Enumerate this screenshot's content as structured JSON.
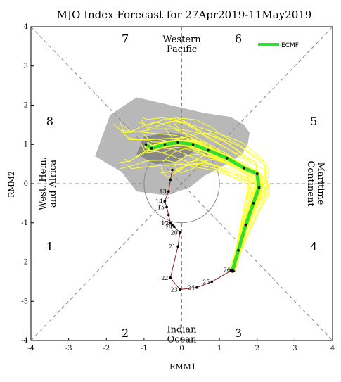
{
  "chart_data": {
    "type": "line",
    "title": "MJO Index Forecast for 27Apr2019-11May2019",
    "xlabel": "RMM1",
    "ylabel": "RMM2",
    "xlim": [
      -4,
      4
    ],
    "ylim": [
      -4,
      4
    ],
    "xticks": [
      "-4",
      "-3",
      "-2",
      "-1",
      "0",
      "1",
      "2",
      "3",
      "4"
    ],
    "yticks": [
      "-4",
      "-3",
      "-2",
      "-1",
      "0",
      "1",
      "2",
      "3",
      "4"
    ],
    "grid": false,
    "legend": {
      "position": "top-right",
      "entries": [
        "ECMF"
      ]
    },
    "phases": [
      {
        "label": "1",
        "x": -3.5,
        "y": -1.6
      },
      {
        "label": "2",
        "x": -1.5,
        "y": -3.8
      },
      {
        "label": "3",
        "x": 1.5,
        "y": -3.8
      },
      {
        "label": "4",
        "x": 3.5,
        "y": -1.6
      },
      {
        "label": "5",
        "x": 3.5,
        "y": 1.6
      },
      {
        "label": "6",
        "x": 1.5,
        "y": 3.7
      },
      {
        "label": "7",
        "x": -1.5,
        "y": 3.7
      },
      {
        "label": "8",
        "x": -3.5,
        "y": 1.6
      }
    ],
    "regions": [
      {
        "lines": [
          "Western",
          "Pacific"
        ],
        "x": 0,
        "y": 3.55,
        "rotate": 0
      },
      {
        "lines": [
          "Indian",
          "Ocean"
        ],
        "x": 0,
        "y": -3.85,
        "rotate": 0
      },
      {
        "lines": [
          "West. Hem.",
          "and Africa"
        ],
        "x": -3.55,
        "y": 0,
        "rotate": -90
      },
      {
        "lines": [
          "Maritime",
          "Continent"
        ],
        "x": 3.55,
        "y": 0,
        "rotate": 90
      }
    ],
    "series": [
      {
        "name": "",
        "kind": "observed",
        "color": "#8b1a1a",
        "points": [
          {
            "x": -0.25,
            "y": 0.35,
            "label": ""
          },
          {
            "x": -0.3,
            "y": 0.1,
            "label": ""
          },
          {
            "x": -0.35,
            "y": -0.2,
            "label": "13"
          },
          {
            "x": -0.45,
            "y": -0.45,
            "label": "14"
          },
          {
            "x": -0.4,
            "y": -0.6,
            "label": "15"
          },
          {
            "x": -0.35,
            "y": -0.8,
            "label": ""
          },
          {
            "x": -0.3,
            "y": -1.0,
            "label": "17"
          },
          {
            "x": -0.25,
            "y": -1.05,
            "label": "18"
          },
          {
            "x": -0.2,
            "y": -1.1,
            "label": "19"
          },
          {
            "x": -0.05,
            "y": -1.25,
            "label": "20"
          },
          {
            "x": -0.1,
            "y": -1.6,
            "label": "21"
          },
          {
            "x": -0.3,
            "y": -2.4,
            "label": "22"
          },
          {
            "x": -0.05,
            "y": -2.7,
            "label": "23"
          },
          {
            "x": 0.4,
            "y": -2.65,
            "label": "24"
          },
          {
            "x": 0.8,
            "y": -2.5,
            "label": "25"
          },
          {
            "x": 1.35,
            "y": -2.2,
            "label": "26"
          }
        ]
      },
      {
        "name": "ECMF",
        "kind": "ensemble-mean",
        "color": "#33dd33",
        "points": [
          {
            "x": 1.35,
            "y": -2.2
          },
          {
            "x": 1.5,
            "y": -1.7
          },
          {
            "x": 1.7,
            "y": -1.05
          },
          {
            "x": 1.9,
            "y": -0.5
          },
          {
            "x": 2.05,
            "y": -0.1
          },
          {
            "x": 2.0,
            "y": 0.25
          },
          {
            "x": 1.65,
            "y": 0.4
          },
          {
            "x": 1.2,
            "y": 0.65
          },
          {
            "x": 0.7,
            "y": 0.85
          },
          {
            "x": 0.3,
            "y": 1.0
          },
          {
            "x": -0.1,
            "y": 1.05
          },
          {
            "x": -0.45,
            "y": 1.0
          },
          {
            "x": -0.8,
            "y": 0.9
          },
          {
            "x": -0.95,
            "y": 1.0
          }
        ]
      }
    ],
    "colors": {
      "ensemble": "#ffff33",
      "ensemble_outline": "#e6e600",
      "spread_light": "#b8b8b8",
      "spread_dark": "#888888",
      "axis": "#000000"
    }
  }
}
